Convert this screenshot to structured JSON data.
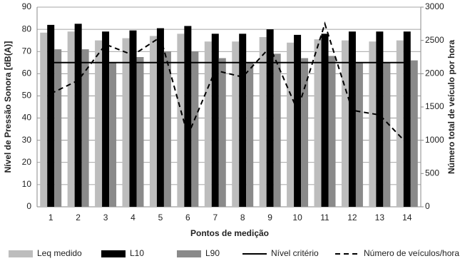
{
  "chart_data": {
    "type": "bar",
    "xlabel": "Pontos de medição",
    "ylabel": "Nível de Pressão Sonora [dB(A)]",
    "y2label": "Número total de veículo por hora",
    "categories": [
      "1",
      "2",
      "3",
      "4",
      "5",
      "6",
      "7",
      "8",
      "9",
      "10",
      "11",
      "12",
      "13",
      "14"
    ],
    "ylim": [
      0,
      90
    ],
    "yticks": [
      0,
      10,
      20,
      30,
      40,
      50,
      60,
      70,
      80,
      90
    ],
    "y2lim": [
      0,
      3000
    ],
    "y2ticks": [
      0,
      500,
      1000,
      1500,
      2000,
      2500,
      3000
    ],
    "grid": true,
    "legend": "bottom",
    "series": [
      {
        "name": "Leq medido",
        "type": "bar",
        "color": "#bdbdbd",
        "values": [
          78.5,
          79,
          75,
          76,
          77,
          78,
          74.5,
          74.5,
          76.5,
          74,
          75.5,
          75,
          74.5,
          75
        ]
      },
      {
        "name": "L10",
        "type": "bar",
        "color": "#000000",
        "values": [
          82,
          82.5,
          79,
          79.5,
          80.5,
          81.5,
          78,
          78,
          80,
          77.5,
          78,
          79,
          79,
          79
        ]
      },
      {
        "name": "L90",
        "type": "bar",
        "color": "#8a8a8a",
        "values": [
          71,
          71,
          65,
          67.5,
          70,
          70,
          67,
          65,
          69,
          67,
          68,
          65,
          65,
          66
        ]
      },
      {
        "name": "Nível critério",
        "type": "line",
        "color": "#000000",
        "dashed": false,
        "values": [
          65,
          65,
          65,
          65,
          65,
          65,
          65,
          65,
          65,
          65,
          65,
          65,
          65,
          65
        ]
      },
      {
        "name": "Número de veículos/hora",
        "type": "line",
        "axis": "y2",
        "color": "#000000",
        "dashed": true,
        "values": [
          1700,
          1900,
          2440,
          2280,
          2550,
          1070,
          2050,
          1950,
          2400,
          1450,
          2750,
          1450,
          1380,
          950
        ]
      }
    ]
  }
}
